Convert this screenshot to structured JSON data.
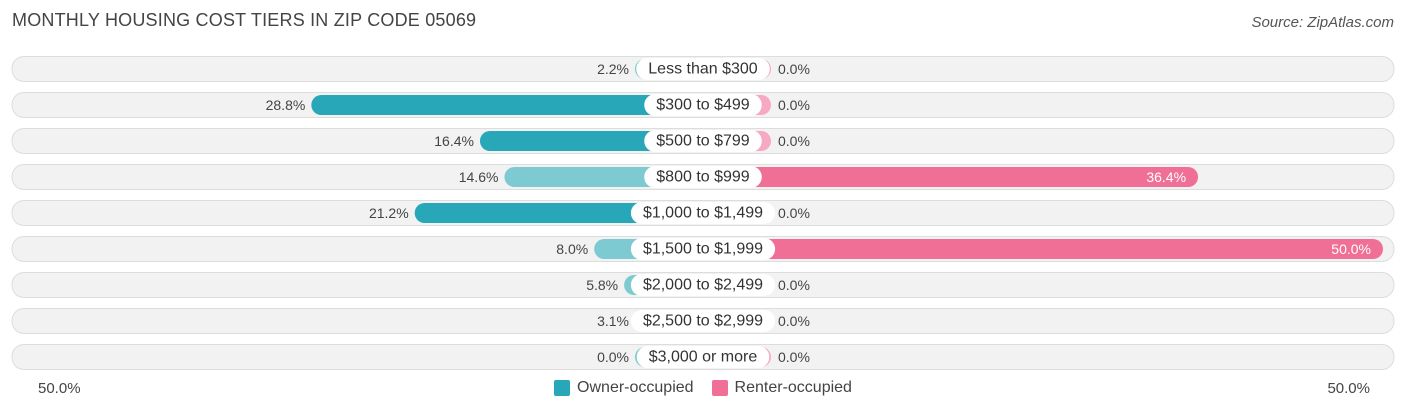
{
  "title": "MONTHLY HOUSING COST TIERS IN ZIP CODE 05069",
  "source": "Source: ZipAtlas.com",
  "colors": {
    "owner_light": "#7dcad2",
    "owner_dark": "#27a7b7",
    "renter_light": "#f7a8c2",
    "renter_dark": "#ef6f97",
    "row_bg": "#f2f2f2",
    "row_border": "#dddddd"
  },
  "axis": {
    "left_label": "50.0%",
    "right_label": "50.0%"
  },
  "legend": {
    "owner_label": "Owner-occupied",
    "renter_label": "Renter-occupied"
  },
  "chart_data": {
    "type": "bar",
    "orientation": "horizontal-diverging",
    "categories": [
      "Less than $300",
      "$300 to $499",
      "$500 to $799",
      "$800 to $999",
      "$1,000 to $1,499",
      "$1,500 to $1,999",
      "$2,000 to $2,499",
      "$2,500 to $2,999",
      "$3,000 or more"
    ],
    "series": [
      {
        "name": "Owner-occupied",
        "values": [
          2.2,
          28.8,
          16.4,
          14.6,
          21.2,
          8.0,
          5.8,
          3.1,
          0.0
        ],
        "labels": [
          "2.2%",
          "28.8%",
          "16.4%",
          "14.6%",
          "21.2%",
          "8.0%",
          "5.8%",
          "3.1%",
          "0.0%"
        ]
      },
      {
        "name": "Renter-occupied",
        "values": [
          0.0,
          0.0,
          0.0,
          36.4,
          0.0,
          50.0,
          0.0,
          0.0,
          0.0
        ],
        "labels": [
          "0.0%",
          "0.0%",
          "0.0%",
          "36.4%",
          "0.0%",
          "50.0%",
          "0.0%",
          "0.0%",
          "0.0%"
        ]
      }
    ],
    "xlim": [
      0,
      50
    ]
  }
}
